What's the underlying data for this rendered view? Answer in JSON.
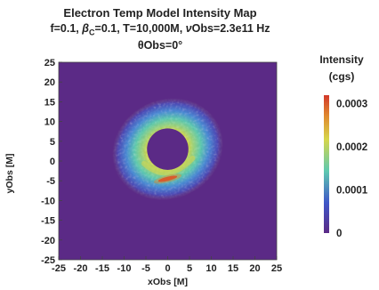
{
  "chart_data": {
    "type": "heatmap",
    "title": "Electron Temp Model Intensity Map",
    "subtitle_parts": {
      "f": "f=0.1, ",
      "beta": "β",
      "beta_sub": "C",
      "beta_val": "=0.1, T=10,000M, ",
      "nu": "ν",
      "nu_rest": "Obs=2.3e11 Hz"
    },
    "subtitle2": "θObs=0°",
    "xlabel": "xObs [M]",
    "ylabel": "yObs [M]",
    "xlim": [
      -25,
      25
    ],
    "ylim": [
      -25,
      25
    ],
    "xticks": [
      "-25",
      "-20",
      "-15",
      "-10",
      "-5",
      "0",
      "5",
      "10",
      "15",
      "20",
      "25"
    ],
    "yticks": [
      "25",
      "20",
      "15",
      "10",
      "5",
      "0",
      "-5",
      "-10",
      "-15",
      "-20",
      "-25"
    ],
    "colorbar": {
      "title_line1": "Intensity",
      "title_line2": "(cgs)",
      "range": [
        0,
        0.00032
      ],
      "ticks": [
        "0.0003",
        "0.0002",
        "0.0001",
        "0"
      ],
      "tick_values": [
        0.0003,
        0.0002,
        0.0001,
        0
      ]
    },
    "features": {
      "ring_center": [
        0,
        3
      ],
      "shadow_radius": 2.5,
      "ring_peak_radius": 6,
      "ring_outer_radius": 12,
      "peak_intensity": 0.0003,
      "peak_location": [
        0,
        -4.5
      ],
      "background_intensity": 0
    },
    "colors": {
      "low": "#5b2a86",
      "mid_low": "#3f57c8",
      "mid": "#5ec9b0",
      "mid_high": "#d6d64a",
      "high": "#d2382a"
    }
  }
}
